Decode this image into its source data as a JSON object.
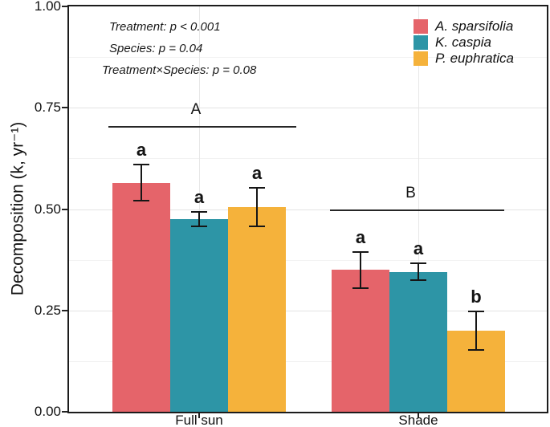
{
  "chart_data": {
    "type": "bar",
    "title": "",
    "ylabel": "Decomposition (k, yr⁻¹)",
    "xlabel": "",
    "ylim": [
      0,
      1.0
    ],
    "ytick_values": [
      0,
      0.25,
      0.5,
      0.75,
      1.0
    ],
    "ytick_labels": [
      "0.00",
      "0.25",
      "0.50",
      "0.75",
      "1.00"
    ],
    "major_gridlines": [
      0.25,
      0.5,
      0.75
    ],
    "minor_gridlines": [
      0.125,
      0.375,
      0.625,
      0.875
    ],
    "grid": true,
    "categories": [
      "Full sun",
      "Shade"
    ],
    "series": [
      {
        "name": "A. sparsifolia",
        "color": "#E5646A",
        "values": [
          0.565,
          0.35
        ],
        "errors": [
          0.045,
          0.045
        ],
        "letters": [
          "a",
          "a"
        ]
      },
      {
        "name": "K. caspia",
        "color": "#2D95A6",
        "values": [
          0.475,
          0.345
        ],
        "errors": [
          0.018,
          0.021
        ],
        "letters": [
          "a",
          "a"
        ]
      },
      {
        "name": "P. euphratica",
        "color": "#F5B23B",
        "values": [
          0.505,
          0.2
        ],
        "errors": [
          0.047,
          0.047
        ],
        "letters": [
          "a",
          "b"
        ]
      }
    ],
    "group_significance": [
      {
        "category": "Full sun",
        "letter": "A",
        "line_value": 0.705
      },
      {
        "category": "Shade",
        "letter": "B",
        "line_value": 0.5
      }
    ],
    "stats_annotations": [
      "Treatment: p < 0.001",
      "Species: p = 0.04",
      "Treatment×Species: p = 0.08"
    ],
    "legend": {
      "position": "top-right"
    }
  }
}
